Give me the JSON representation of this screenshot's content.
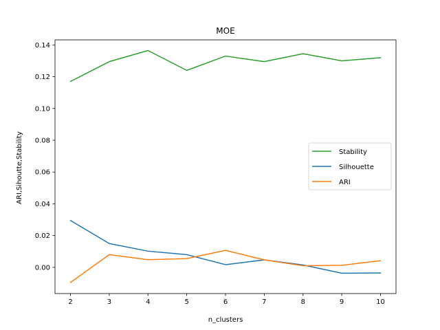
{
  "chart_data": {
    "type": "line",
    "title": "MOE",
    "xlabel": "n_clusters",
    "ylabel": "ARI,Sihoutte,Stability",
    "x": [
      2,
      3,
      4,
      5,
      6,
      7,
      8,
      9,
      10
    ],
    "xticks": [
      "2",
      "3",
      "4",
      "5",
      "6",
      "7",
      "8",
      "9",
      "10"
    ],
    "yticks": [
      0.0,
      0.02,
      0.04,
      0.06,
      0.08,
      0.1,
      0.12,
      0.14
    ],
    "ytick_labels": [
      "0.00",
      "0.02",
      "0.04",
      "0.06",
      "0.08",
      "0.10",
      "0.12",
      "0.14"
    ],
    "xlim": [
      1.6,
      10.4
    ],
    "ylim": [
      -0.0165,
      0.1432
    ],
    "grid": false,
    "legend_position": "center-right",
    "series": [
      {
        "name": "Stability",
        "color": "#2ca02c",
        "values": [
          0.117,
          0.1295,
          0.1365,
          0.124,
          0.133,
          0.1295,
          0.1345,
          0.13,
          0.132
        ]
      },
      {
        "name": "Silhouette",
        "color": "#1f77b4",
        "values": [
          0.0295,
          0.015,
          0.0102,
          0.008,
          0.0017,
          0.0047,
          0.0015,
          -0.0037,
          -0.0035
        ]
      },
      {
        "name": "ARI",
        "color": "#ff7f0e",
        "values": [
          -0.0095,
          0.008,
          0.0048,
          0.0055,
          0.0107,
          0.0047,
          0.001,
          0.0013,
          0.0042
        ]
      }
    ]
  }
}
